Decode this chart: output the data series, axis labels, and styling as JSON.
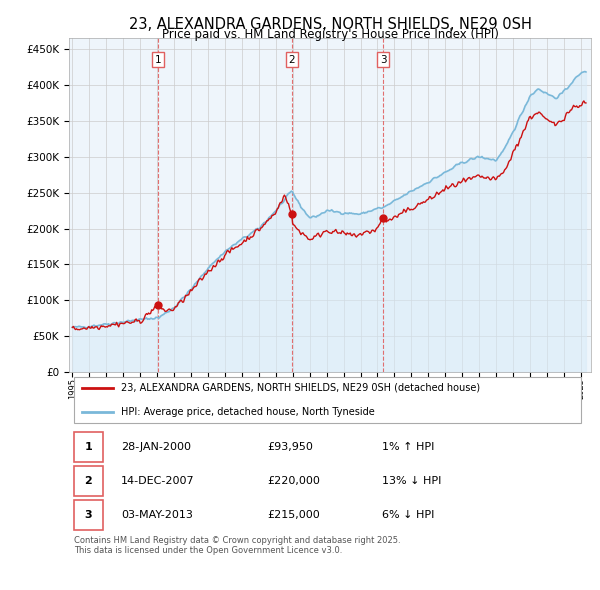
{
  "title": "23, ALEXANDRA GARDENS, NORTH SHIELDS, NE29 0SH",
  "subtitle": "Price paid vs. HM Land Registry's House Price Index (HPI)",
  "title_fontsize": 10.5,
  "subtitle_fontsize": 8.5,
  "ylabel_ticks": [
    "£0",
    "£50K",
    "£100K",
    "£150K",
    "£200K",
    "£250K",
    "£300K",
    "£350K",
    "£400K",
    "£450K"
  ],
  "ytick_values": [
    0,
    50000,
    100000,
    150000,
    200000,
    250000,
    300000,
    350000,
    400000,
    450000
  ],
  "ylim": [
    0,
    465000
  ],
  "hpi_color": "#7ab8d9",
  "hpi_fill_color": "#d6eaf8",
  "price_color": "#cc1111",
  "vline_color": "#e06060",
  "background_color": "#ffffff",
  "chart_bg_color": "#eef5fb",
  "grid_color": "#cccccc",
  "sale_points": [
    {
      "date_num": 2000.07,
      "price": 93950,
      "label": "1"
    },
    {
      "date_num": 2007.95,
      "price": 220000,
      "label": "2"
    },
    {
      "date_num": 2013.34,
      "price": 215000,
      "label": "3"
    }
  ],
  "legend_entries": [
    "23, ALEXANDRA GARDENS, NORTH SHIELDS, NE29 0SH (detached house)",
    "HPI: Average price, detached house, North Tyneside"
  ],
  "table_rows": [
    {
      "num": "1",
      "date": "28-JAN-2000",
      "price": "£93,950",
      "hpi": "1% ↑ HPI"
    },
    {
      "num": "2",
      "date": "14-DEC-2007",
      "price": "£220,000",
      "hpi": "13% ↓ HPI"
    },
    {
      "num": "3",
      "date": "03-MAY-2013",
      "price": "£215,000",
      "hpi": "6% ↓ HPI"
    }
  ],
  "footnote": "Contains HM Land Registry data © Crown copyright and database right 2025.\nThis data is licensed under the Open Government Licence v3.0."
}
